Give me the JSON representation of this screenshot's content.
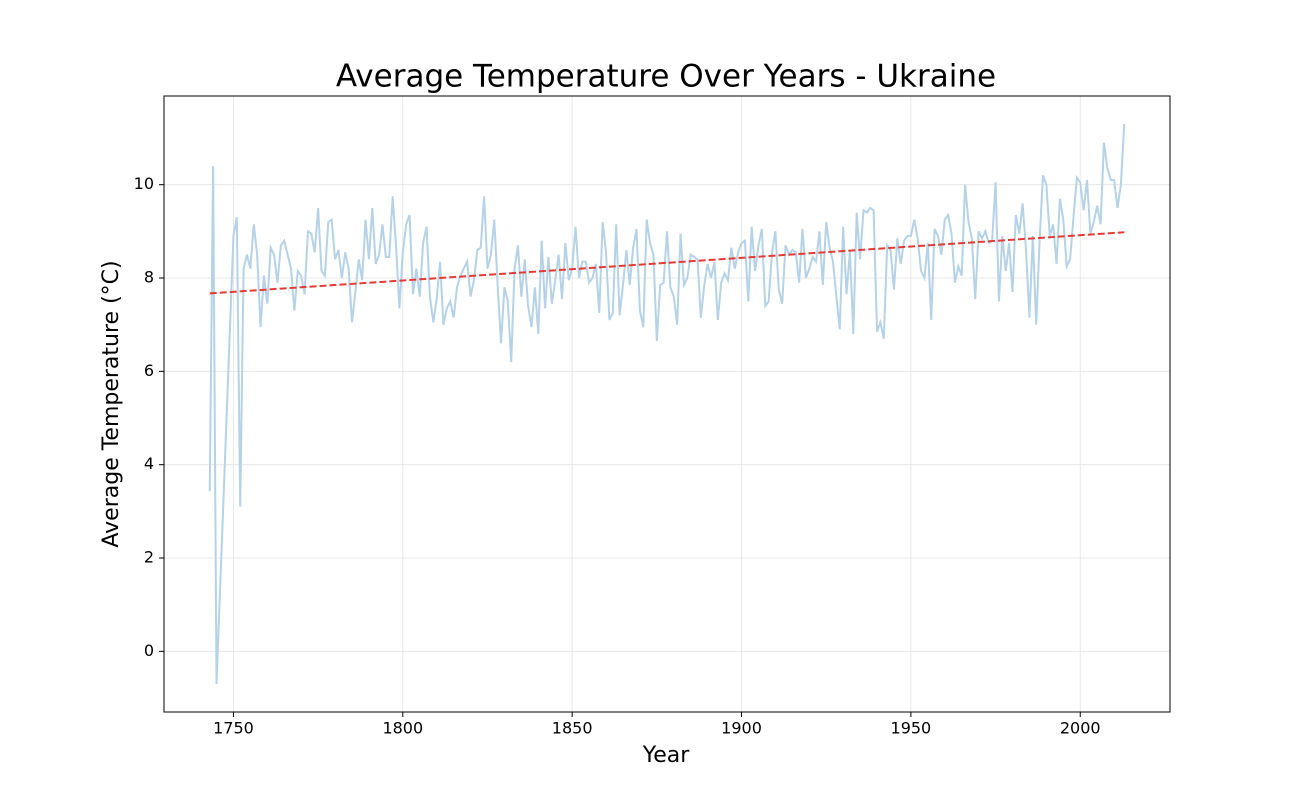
{
  "chart_data": {
    "type": "line",
    "title": "Average Temperature Over Years - Ukraine",
    "x_label": "Year",
    "y_label": "Average Temperature (°C)",
    "xlim": [
      1729.5,
      2026.5
    ],
    "ylim": [
      -1.3,
      11.9
    ],
    "xticks": [
      1750,
      1800,
      1850,
      1900,
      1950,
      2000
    ],
    "yticks": [
      0,
      2,
      4,
      6,
      8,
      10
    ],
    "grid": true,
    "series": [
      {
        "color": "#b5d2e6",
        "dashed": false,
        "x": [
          1743,
          1744,
          1745,
          1750,
          1751,
          1752,
          1753,
          1754,
          1755,
          1756,
          1757,
          1758,
          1759,
          1760,
          1761,
          1762,
          1763,
          1764,
          1765,
          1766,
          1767,
          1768,
          1769,
          1770,
          1771,
          1772,
          1773,
          1774,
          1775,
          1776,
          1777,
          1778,
          1779,
          1780,
          1781,
          1782,
          1783,
          1784,
          1785,
          1786,
          1787,
          1788,
          1789,
          1790,
          1791,
          1792,
          1793,
          1794,
          1795,
          1796,
          1797,
          1798,
          1799,
          1800,
          1801,
          1802,
          1803,
          1804,
          1805,
          1806,
          1807,
          1808,
          1809,
          1810,
          1811,
          1812,
          1813,
          1814,
          1815,
          1816,
          1817,
          1818,
          1819,
          1820,
          1821,
          1822,
          1823,
          1824,
          1825,
          1826,
          1827,
          1828,
          1829,
          1830,
          1831,
          1832,
          1833,
          1834,
          1835,
          1836,
          1837,
          1838,
          1839,
          1840,
          1841,
          1842,
          1843,
          1844,
          1845,
          1846,
          1847,
          1848,
          1849,
          1850,
          1851,
          1852,
          1853,
          1854,
          1855,
          1856,
          1857,
          1858,
          1859,
          1860,
          1861,
          1862,
          1863,
          1864,
          1865,
          1866,
          1867,
          1868,
          1869,
          1870,
          1871,
          1872,
          1873,
          1874,
          1875,
          1876,
          1877,
          1878,
          1879,
          1880,
          1881,
          1882,
          1883,
          1884,
          1885,
          1886,
          1887,
          1888,
          1889,
          1890,
          1891,
          1892,
          1893,
          1894,
          1895,
          1896,
          1897,
          1898,
          1899,
          1900,
          1901,
          1902,
          1903,
          1904,
          1905,
          1906,
          1907,
          1908,
          1909,
          1910,
          1911,
          1912,
          1913,
          1914,
          1915,
          1916,
          1917,
          1918,
          1919,
          1920,
          1921,
          1922,
          1923,
          1924,
          1925,
          1926,
          1927,
          1928,
          1929,
          1930,
          1931,
          1932,
          1933,
          1934,
          1935,
          1936,
          1937,
          1938,
          1939,
          1940,
          1941,
          1942,
          1943,
          1944,
          1945,
          1946,
          1947,
          1948,
          1949,
          1950,
          1951,
          1952,
          1953,
          1954,
          1955,
          1956,
          1957,
          1958,
          1959,
          1960,
          1961,
          1962,
          1963,
          1964,
          1965,
          1966,
          1967,
          1968,
          1969,
          1970,
          1971,
          1972,
          1973,
          1974,
          1975,
          1976,
          1977,
          1978,
          1979,
          1980,
          1981,
          1982,
          1983,
          1984,
          1985,
          1986,
          1987,
          1988,
          1989,
          1990,
          1991,
          1992,
          1993,
          1994,
          1995,
          1996,
          1997,
          1998,
          1999,
          2000,
          2001,
          2002,
          2003,
          2004,
          2005,
          2006,
          2007,
          2008,
          2009,
          2010,
          2011,
          2012,
          2013
        ],
        "values": [
          3.43,
          10.4,
          -0.7,
          8.9,
          9.3,
          3.1,
          8.2,
          8.5,
          8.2,
          9.15,
          8.5,
          6.95,
          8.05,
          7.45,
          8.65,
          8.5,
          7.9,
          8.7,
          8.8,
          8.5,
          8.2,
          7.3,
          8.15,
          8.05,
          7.65,
          9.0,
          8.95,
          8.55,
          9.5,
          8.15,
          8.05,
          9.2,
          9.25,
          8.4,
          8.6,
          8.0,
          8.55,
          8.2,
          7.05,
          7.7,
          8.4,
          7.95,
          9.25,
          8.4,
          9.5,
          8.3,
          8.5,
          9.15,
          8.45,
          8.45,
          9.75,
          8.7,
          7.35,
          8.55,
          9.15,
          9.35,
          7.65,
          8.2,
          7.6,
          8.75,
          9.1,
          7.6,
          7.05,
          7.55,
          8.35,
          7.0,
          7.35,
          7.5,
          7.15,
          7.8,
          8.05,
          8.2,
          8.35,
          7.6,
          7.95,
          8.6,
          8.65,
          9.75,
          8.2,
          8.5,
          9.25,
          7.85,
          6.6,
          7.8,
          7.5,
          6.2,
          8.2,
          8.7,
          7.6,
          8.4,
          7.4,
          6.95,
          7.8,
          6.8,
          8.8,
          7.35,
          8.45,
          7.45,
          7.95,
          8.5,
          7.55,
          8.75,
          7.95,
          8.2,
          9.1,
          8.0,
          8.35,
          8.35,
          7.9,
          8.0,
          8.3,
          7.25,
          9.2,
          8.55,
          7.1,
          7.25,
          9.15,
          7.2,
          7.85,
          8.6,
          7.85,
          8.65,
          9.05,
          7.3,
          6.95,
          9.25,
          8.75,
          8.5,
          6.65,
          7.85,
          7.9,
          9.0,
          7.8,
          7.6,
          7.0,
          8.95,
          7.85,
          8.0,
          8.5,
          8.45,
          8.4,
          7.15,
          7.85,
          8.3,
          8.0,
          8.35,
          7.1,
          7.9,
          8.1,
          7.95,
          8.65,
          8.2,
          8.55,
          8.75,
          8.8,
          7.5,
          9.1,
          8.15,
          8.7,
          9.05,
          7.4,
          7.5,
          8.55,
          9.0,
          7.75,
          7.45,
          8.7,
          8.5,
          8.6,
          8.55,
          7.9,
          9.05,
          8.0,
          8.2,
          8.45,
          8.35,
          9.0,
          7.85,
          9.2,
          8.65,
          8.35,
          7.6,
          6.9,
          9.1,
          7.65,
          8.6,
          6.8,
          9.4,
          8.4,
          9.45,
          9.4,
          9.5,
          9.45,
          6.85,
          7.05,
          6.7,
          8.7,
          8.6,
          7.75,
          8.85,
          8.3,
          8.8,
          8.9,
          8.9,
          9.25,
          8.85,
          8.15,
          8.0,
          8.75,
          7.1,
          9.05,
          8.9,
          8.5,
          9.25,
          9.35,
          8.95,
          7.9,
          8.25,
          8.05,
          10.0,
          9.2,
          8.85,
          7.55,
          9.0,
          8.85,
          9.0,
          8.75,
          8.8,
          10.05,
          7.5,
          8.9,
          8.15,
          8.75,
          7.7,
          9.35,
          8.95,
          9.6,
          8.6,
          7.15,
          8.9,
          7.0,
          8.8,
          10.2,
          10.0,
          8.9,
          9.15,
          8.3,
          9.7,
          9.25,
          8.25,
          8.4,
          9.3,
          10.15,
          10.05,
          9.45,
          10.1,
          8.95,
          9.2,
          9.55,
          9.15,
          10.9,
          10.35,
          10.1,
          10.1,
          9.5,
          10.0,
          11.3
        ]
      },
      {
        "color": "#e33a36",
        "dashed": true,
        "x": [
          1743,
          2013
        ],
        "values": [
          7.67,
          8.98
        ]
      }
    ]
  }
}
